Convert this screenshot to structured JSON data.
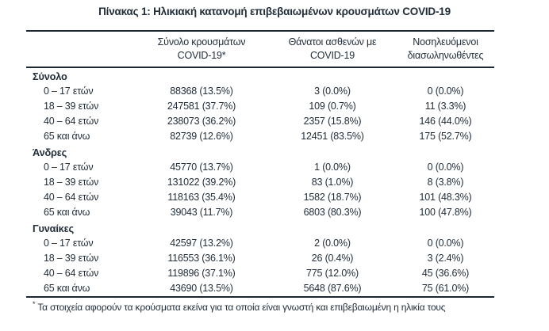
{
  "title": "Πίνακας 1: Ηλικιακή κατανομή επιβεβαιωμένων κρουσμάτων COVID-19",
  "table": {
    "columns": [
      {
        "line1": "Σύνολο κρουσμάτων",
        "line2": "COVID-19*"
      },
      {
        "line1": "Θάνατοι ασθενών με",
        "line2": "COVID-19"
      },
      {
        "line1": "Νοσηλευόμενοι",
        "line2": "διασωληνωθέντες"
      }
    ],
    "sections": [
      {
        "name": "Σύνολο",
        "rows": [
          {
            "label": "0 – 17 ετών",
            "cases": "88368 (13.5%)",
            "deaths": "3 (0.0%)",
            "intubated": "0 (0.0%)"
          },
          {
            "label": "18 – 39 ετών",
            "cases": "247581 (37.7%)",
            "deaths": "109 (0.7%)",
            "intubated": "11 (3.3%)"
          },
          {
            "label": "40 – 64 ετών",
            "cases": "238073 (36.2%)",
            "deaths": "2357 (15.8%)",
            "intubated": "146 (44.0%)"
          },
          {
            "label": "65 και άνω",
            "cases": "82739 (12.6%)",
            "deaths": "12451 (83.5%)",
            "intubated": "175 (52.7%)"
          }
        ]
      },
      {
        "name": "Άνδρες",
        "rows": [
          {
            "label": "0 – 17 ετών",
            "cases": "45770 (13.7%)",
            "deaths": "1 (0.0%)",
            "intubated": "0 (0.0%)"
          },
          {
            "label": "18 – 39 ετών",
            "cases": "131022 (39.2%)",
            "deaths": "83 (1.0%)",
            "intubated": "8 (3.8%)"
          },
          {
            "label": "40 – 64 ετών",
            "cases": "118163 (35.4%)",
            "deaths": "1582 (18.7%)",
            "intubated": "101 (48.3%)"
          },
          {
            "label": "65 και άνω",
            "cases": "39043 (11.7%)",
            "deaths": "6803 (80.3%)",
            "intubated": "100 (47.8%)"
          }
        ]
      },
      {
        "name": "Γυναίκες",
        "rows": [
          {
            "label": "0 – 17 ετών",
            "cases": "42597 (13.2%)",
            "deaths": "2 (0.0%)",
            "intubated": "0 (0.0%)"
          },
          {
            "label": "18 – 39 ετών",
            "cases": "116553 (36.1%)",
            "deaths": "26 (0.4%)",
            "intubated": "3 (2.4%)"
          },
          {
            "label": "40 – 64 ετών",
            "cases": "119896 (37.1%)",
            "deaths": "775 (12.0%)",
            "intubated": "45 (36.6%)"
          },
          {
            "label": "65 και άνω",
            "cases": "43690 (13.5%)",
            "deaths": "5648 (87.6%)",
            "intubated": "75 (61.0%)"
          }
        ]
      }
    ]
  },
  "footnote": {
    "marker": "*",
    "text": "Τα στοιχεία αφορούν τα κρούσματα εκείνα για τα οποία είναι γνωστή και επιβεβαιωμένη η ηλικία τους"
  }
}
